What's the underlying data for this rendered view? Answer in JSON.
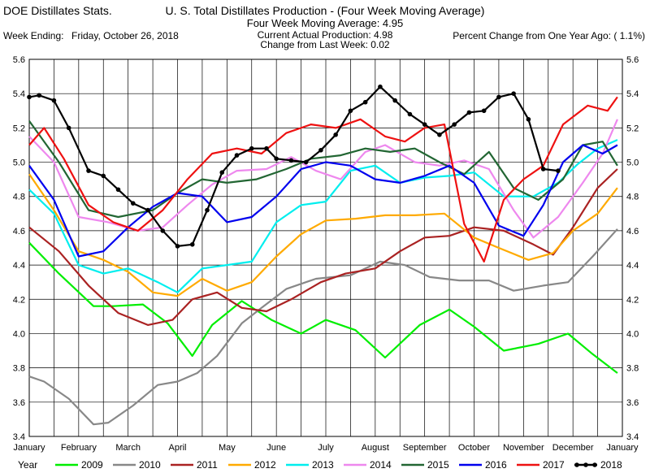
{
  "header": {
    "app_title": "DOE Distillates Stats.",
    "title": "U. S. Total Distillates Production - (Four Week Moving Average)",
    "subtitle_line1": "Four Week Moving Average:  4.95",
    "subtitle_line2": "Current Actual Production:  4.98",
    "subtitle_line3": "Change from Last Week:  0.02",
    "week_ending_label": "Week Ending:",
    "week_ending_value": "Friday, October 26, 2018",
    "pct_change": "Percent Change from One Year Ago:  ( 1.1%)"
  },
  "legend": {
    "label": "Year"
  },
  "colors": {
    "grid": "#000000",
    "background": "#ffffff"
  },
  "chart_data": {
    "type": "line",
    "title": "U. S. Total Distillates Production - (Four Week Moving Average)",
    "xlabel": "",
    "ylabel": "",
    "ylim": [
      3.4,
      5.6
    ],
    "xlim": [
      0,
      12
    ],
    "yticks": [
      "3.4",
      "3.6",
      "3.8",
      "4.0",
      "4.2",
      "4.4",
      "4.6",
      "4.8",
      "5.0",
      "5.2",
      "5.4",
      "5.6"
    ],
    "months": [
      "January",
      "February",
      "March",
      "April",
      "May",
      "June",
      "July",
      "August",
      "September",
      "October",
      "November",
      "December",
      "January"
    ],
    "grid": true,
    "legend_position": "bottom",
    "series": [
      {
        "name": "2009",
        "color": "#00ee00",
        "marker": false,
        "x": [
          0,
          0.6,
          1.3,
          1.7,
          2.3,
          2.8,
          3.3,
          3.7,
          4.3,
          4.9,
          5.5,
          6.0,
          6.6,
          7.2,
          7.9,
          8.5,
          9.0,
          9.6,
          10.3,
          10.9,
          11.4,
          11.9
        ],
        "y": [
          4.53,
          4.35,
          4.16,
          4.16,
          4.17,
          4.06,
          3.87,
          4.05,
          4.19,
          4.08,
          4.0,
          4.08,
          4.02,
          3.86,
          4.05,
          4.14,
          4.04,
          3.9,
          3.94,
          4.0,
          3.88,
          3.77
        ]
      },
      {
        "name": "2010",
        "color": "#888888",
        "marker": false,
        "x": [
          0,
          0.3,
          0.8,
          1.3,
          1.6,
          2.1,
          2.6,
          3.0,
          3.4,
          3.8,
          4.3,
          4.7,
          5.2,
          5.8,
          6.5,
          7.1,
          7.6,
          8.1,
          8.7,
          9.3,
          9.8,
          10.4,
          10.9,
          11.4,
          11.9
        ],
        "y": [
          3.75,
          3.72,
          3.62,
          3.47,
          3.48,
          3.58,
          3.7,
          3.72,
          3.77,
          3.87,
          4.06,
          4.15,
          4.26,
          4.32,
          4.34,
          4.42,
          4.4,
          4.33,
          4.31,
          4.31,
          4.25,
          4.28,
          4.3,
          4.45,
          4.61
        ]
      },
      {
        "name": "2011",
        "color": "#aa2222",
        "marker": false,
        "x": [
          0,
          0.6,
          1.2,
          1.8,
          2.4,
          2.9,
          3.3,
          3.8,
          4.3,
          4.8,
          5.3,
          5.9,
          6.4,
          7.0,
          7.5,
          8.0,
          8.5,
          9.0,
          9.6,
          10.2,
          10.6,
          11.0,
          11.5,
          11.9
        ],
        "y": [
          4.62,
          4.48,
          4.28,
          4.12,
          4.05,
          4.08,
          4.2,
          4.24,
          4.15,
          4.13,
          4.2,
          4.3,
          4.35,
          4.38,
          4.48,
          4.56,
          4.57,
          4.62,
          4.6,
          4.52,
          4.46,
          4.62,
          4.85,
          4.96
        ]
      },
      {
        "name": "2012",
        "color": "#ffaa00",
        "marker": false,
        "x": [
          0,
          0.5,
          1.0,
          1.5,
          2.0,
          2.5,
          3.0,
          3.5,
          4.0,
          4.5,
          5.0,
          5.5,
          6.0,
          6.6,
          7.2,
          7.8,
          8.4,
          9.0,
          9.5,
          10.1,
          10.6,
          11.0,
          11.5,
          11.9
        ],
        "y": [
          4.93,
          4.72,
          4.48,
          4.43,
          4.36,
          4.24,
          4.22,
          4.32,
          4.25,
          4.3,
          4.45,
          4.58,
          4.66,
          4.67,
          4.69,
          4.69,
          4.7,
          4.56,
          4.5,
          4.43,
          4.47,
          4.6,
          4.7,
          4.85
        ]
      },
      {
        "name": "2013",
        "color": "#00eeee",
        "marker": false,
        "x": [
          0,
          0.5,
          1.0,
          1.5,
          2.0,
          2.6,
          3.0,
          3.5,
          4.0,
          4.5,
          5.0,
          5.5,
          6.0,
          6.5,
          7.0,
          7.5,
          8.0,
          8.5,
          9.0,
          9.6,
          10.2,
          10.7,
          11.1,
          11.5,
          11.9
        ],
        "y": [
          4.84,
          4.7,
          4.4,
          4.35,
          4.38,
          4.3,
          4.24,
          4.38,
          4.4,
          4.42,
          4.65,
          4.75,
          4.77,
          4.95,
          4.98,
          4.88,
          4.91,
          4.92,
          4.94,
          4.8,
          4.8,
          4.88,
          4.99,
          5.08,
          5.13
        ]
      },
      {
        "name": "2014",
        "color": "#ee88ee",
        "marker": false,
        "x": [
          0,
          0.5,
          1.0,
          1.6,
          2.2,
          2.7,
          3.2,
          3.7,
          4.2,
          4.8,
          5.3,
          5.8,
          6.3,
          6.8,
          7.2,
          7.8,
          8.3,
          8.8,
          9.3,
          9.8,
          10.2,
          10.7,
          11.2,
          11.6,
          11.9
        ],
        "y": [
          5.15,
          5.0,
          4.68,
          4.65,
          4.6,
          4.62,
          4.75,
          4.87,
          4.95,
          4.96,
          5.03,
          4.95,
          4.9,
          5.06,
          5.1,
          5.0,
          4.98,
          5.01,
          4.96,
          4.72,
          4.56,
          4.68,
          4.88,
          5.05,
          5.25
        ]
      },
      {
        "name": "2015",
        "color": "#226633",
        "marker": false,
        "x": [
          0,
          0.6,
          1.2,
          1.8,
          2.5,
          3.0,
          3.5,
          4.0,
          4.6,
          5.2,
          5.7,
          6.3,
          6.8,
          7.3,
          7.8,
          8.3,
          8.8,
          9.3,
          9.8,
          10.3,
          10.8,
          11.2,
          11.6,
          11.9
        ],
        "y": [
          5.24,
          5.0,
          4.72,
          4.68,
          4.72,
          4.82,
          4.9,
          4.88,
          4.9,
          4.96,
          5.02,
          5.04,
          5.08,
          5.06,
          5.08,
          5.0,
          4.93,
          5.06,
          4.85,
          4.78,
          4.9,
          5.1,
          5.12,
          4.98
        ]
      },
      {
        "name": "2016",
        "color": "#0000ee",
        "marker": false,
        "x": [
          0,
          0.5,
          1.0,
          1.5,
          2.0,
          2.5,
          3.0,
          3.5,
          4.0,
          4.5,
          5.0,
          5.5,
          6.0,
          6.5,
          7.0,
          7.5,
          8.0,
          8.5,
          9.0,
          9.5,
          10.0,
          10.4,
          10.8,
          11.2,
          11.6,
          11.9
        ],
        "y": [
          4.98,
          4.78,
          4.45,
          4.48,
          4.62,
          4.74,
          4.82,
          4.8,
          4.65,
          4.68,
          4.8,
          4.96,
          5.0,
          4.98,
          4.9,
          4.88,
          4.92,
          4.98,
          4.88,
          4.63,
          4.57,
          4.75,
          5.0,
          5.1,
          5.05,
          5.1
        ]
      },
      {
        "name": "2017",
        "color": "#ee1111",
        "marker": false,
        "x": [
          0,
          0.3,
          0.7,
          1.2,
          1.7,
          2.2,
          2.7,
          3.2,
          3.7,
          4.2,
          4.7,
          5.2,
          5.7,
          6.2,
          6.7,
          7.2,
          7.6,
          8.0,
          8.4,
          8.8,
          9.2,
          9.6,
          10.0,
          10.4,
          10.8,
          11.3,
          11.7,
          11.9
        ],
        "y": [
          5.1,
          5.2,
          5.02,
          4.75,
          4.65,
          4.6,
          4.72,
          4.9,
          5.05,
          5.08,
          5.05,
          5.17,
          5.22,
          5.2,
          5.25,
          5.15,
          5.12,
          5.2,
          5.22,
          4.64,
          4.42,
          4.78,
          4.9,
          4.98,
          5.22,
          5.33,
          5.3,
          5.38
        ]
      },
      {
        "name": "2018",
        "color": "#000000",
        "marker": true,
        "x": [
          0,
          0.2,
          0.5,
          0.8,
          1.2,
          1.5,
          1.8,
          2.1,
          2.4,
          2.7,
          3.0,
          3.3,
          3.6,
          3.9,
          4.2,
          4.5,
          4.8,
          5.0,
          5.3,
          5.6,
          5.9,
          6.2,
          6.5,
          6.8,
          7.1,
          7.4,
          7.7,
          8.0,
          8.3,
          8.6,
          8.9,
          9.2,
          9.5,
          9.8,
          10.1,
          10.4,
          10.7
        ],
        "y": [
          5.38,
          5.39,
          5.36,
          5.2,
          4.95,
          4.92,
          4.84,
          4.76,
          4.72,
          4.6,
          4.51,
          4.52,
          4.72,
          4.94,
          5.04,
          5.08,
          5.08,
          5.02,
          5.01,
          5.0,
          5.07,
          5.16,
          5.3,
          5.35,
          5.44,
          5.36,
          5.28,
          5.22,
          5.16,
          5.22,
          5.29,
          5.3,
          5.38,
          5.4,
          5.25,
          4.96,
          4.95
        ]
      }
    ]
  }
}
